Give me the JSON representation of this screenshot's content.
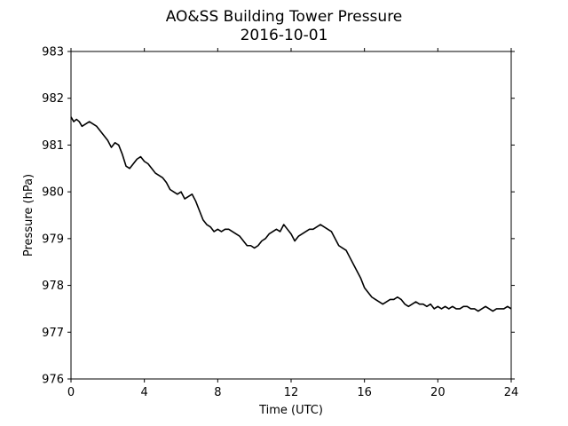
{
  "chart_data": {
    "type": "line",
    "title": "AO&SS Building Tower Pressure",
    "subtitle": "2016-10-01",
    "xlabel": "Time (UTC)",
    "ylabel": "Pressure (hPa)",
    "xlim": [
      0,
      24
    ],
    "ylim": [
      976,
      983
    ],
    "xticks": [
      0,
      4,
      8,
      12,
      16,
      20,
      24
    ],
    "yticks": [
      976,
      977,
      978,
      979,
      980,
      981,
      982,
      983
    ],
    "grid": false,
    "line_color": "#000000",
    "series": [
      {
        "x": [
          0.0,
          0.15,
          0.3,
          0.45,
          0.6,
          0.8,
          1.0,
          1.2,
          1.4,
          1.6,
          1.8,
          2.0,
          2.2,
          2.4,
          2.6,
          2.8,
          3.0,
          3.2,
          3.4,
          3.6,
          3.8,
          4.0,
          4.2,
          4.4,
          4.6,
          4.8,
          5.0,
          5.2,
          5.4,
          5.6,
          5.8,
          6.0,
          6.2,
          6.4,
          6.6,
          6.8,
          7.0,
          7.2,
          7.4,
          7.6,
          7.8,
          8.0,
          8.2,
          8.4,
          8.6,
          8.8,
          9.0,
          9.2,
          9.4,
          9.6,
          9.8,
          10.0,
          10.2,
          10.4,
          10.6,
          10.8,
          11.0,
          11.2,
          11.4,
          11.6,
          11.8,
          12.0,
          12.2,
          12.4,
          12.6,
          12.8,
          13.0,
          13.2,
          13.4,
          13.6,
          13.8,
          14.0,
          14.2,
          14.4,
          14.6,
          14.8,
          15.0,
          15.2,
          15.4,
          15.6,
          15.8,
          16.0,
          16.2,
          16.4,
          16.6,
          16.8,
          17.0,
          17.2,
          17.4,
          17.6,
          17.8,
          18.0,
          18.2,
          18.4,
          18.6,
          18.8,
          19.0,
          19.2,
          19.4,
          19.6,
          19.8,
          20.0,
          20.2,
          20.4,
          20.6,
          20.8,
          21.0,
          21.2,
          21.4,
          21.6,
          21.8,
          22.0,
          22.2,
          22.4,
          22.6,
          22.8,
          23.0,
          23.2,
          23.4,
          23.6,
          23.8,
          24.0
        ],
        "y": [
          981.6,
          981.5,
          981.55,
          981.5,
          981.4,
          981.45,
          981.5,
          981.45,
          981.4,
          981.3,
          981.2,
          981.1,
          980.95,
          981.05,
          981.0,
          980.8,
          980.55,
          980.5,
          980.6,
          980.7,
          980.75,
          980.65,
          980.6,
          980.5,
          980.4,
          980.35,
          980.3,
          980.2,
          980.05,
          980.0,
          979.95,
          980.0,
          979.85,
          979.9,
          979.95,
          979.8,
          979.6,
          979.4,
          979.3,
          979.25,
          979.15,
          979.2,
          979.15,
          979.2,
          979.2,
          979.15,
          979.1,
          979.05,
          978.95,
          978.85,
          978.85,
          978.8,
          978.85,
          978.95,
          979.0,
          979.1,
          979.15,
          979.2,
          979.15,
          979.3,
          979.2,
          979.1,
          978.95,
          979.05,
          979.1,
          979.15,
          979.2,
          979.2,
          979.25,
          979.3,
          979.25,
          979.2,
          979.15,
          979.0,
          978.85,
          978.8,
          978.75,
          978.6,
          978.45,
          978.3,
          978.15,
          977.95,
          977.85,
          977.75,
          977.7,
          977.65,
          977.6,
          977.65,
          977.7,
          977.7,
          977.75,
          977.7,
          977.6,
          977.55,
          977.6,
          977.65,
          977.6,
          977.6,
          977.55,
          977.6,
          977.5,
          977.55,
          977.5,
          977.55,
          977.5,
          977.55,
          977.5,
          977.5,
          977.55,
          977.55,
          977.5,
          977.5,
          977.45,
          977.5,
          977.55,
          977.5,
          977.45,
          977.5,
          977.5,
          977.5,
          977.55,
          977.5
        ]
      }
    ]
  }
}
